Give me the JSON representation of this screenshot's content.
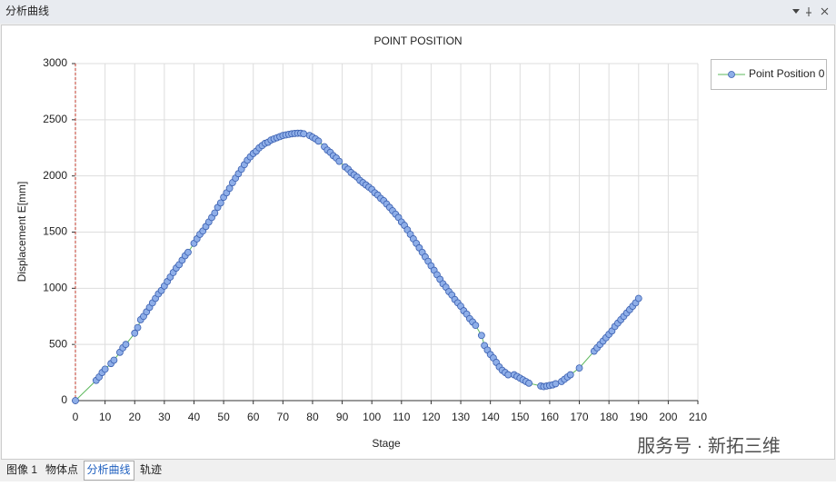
{
  "window": {
    "title": "分析曲线",
    "tabs": [
      "图像 1",
      "物体点",
      "分析曲线",
      "轨迹"
    ],
    "active_tab": 2,
    "watermark": "服务号 · 新拓三维"
  },
  "chart_data": {
    "type": "line",
    "title": "POINT POSITION",
    "x_label": "Stage",
    "y_label": "Displacement E[mm]",
    "x": [
      0,
      7,
      8,
      9,
      10,
      12,
      13,
      15,
      16,
      17,
      20,
      21,
      22,
      23,
      24,
      25,
      26,
      27,
      28,
      29,
      30,
      31,
      32,
      33,
      34,
      35,
      36,
      37,
      38,
      40,
      41,
      42,
      43,
      44,
      45,
      46,
      47,
      48,
      49,
      50,
      51,
      52,
      53,
      54,
      55,
      56,
      57,
      58,
      59,
      60,
      61,
      62,
      63,
      64,
      65,
      66,
      67,
      68,
      69,
      70,
      71,
      72,
      73,
      74,
      75,
      76,
      77,
      79,
      80,
      81,
      82,
      84,
      85,
      86,
      87,
      88,
      89,
      91,
      92,
      93,
      94,
      95,
      96,
      97,
      98,
      99,
      100,
      101,
      102,
      103,
      104,
      105,
      106,
      107,
      108,
      109,
      110,
      111,
      112,
      113,
      114,
      115,
      116,
      117,
      118,
      119,
      120,
      121,
      122,
      123,
      124,
      125,
      126,
      127,
      128,
      129,
      130,
      131,
      132,
      133,
      134,
      135,
      137,
      138,
      139,
      140,
      141,
      142,
      143,
      144,
      145,
      146,
      148,
      149,
      150,
      151,
      152,
      153,
      157,
      158,
      159,
      160,
      161,
      162,
      164,
      165,
      166,
      167,
      170,
      175,
      176,
      177,
      178,
      179,
      180,
      181,
      182,
      183,
      184,
      185,
      186,
      187,
      188,
      189,
      190
    ],
    "series": [
      {
        "name": "Point Position 0",
        "color": "#5cb85c",
        "marker_color": "#8eaee8",
        "marker_edge": "#3a5fb0",
        "values": [
          0,
          180,
          210,
          250,
          280,
          330,
          360,
          430,
          470,
          500,
          600,
          650,
          720,
          750,
          790,
          830,
          870,
          910,
          950,
          980,
          1020,
          1060,
          1100,
          1140,
          1180,
          1210,
          1250,
          1290,
          1320,
          1400,
          1440,
          1480,
          1510,
          1550,
          1590,
          1630,
          1670,
          1720,
          1760,
          1810,
          1850,
          1890,
          1940,
          1980,
          2020,
          2060,
          2100,
          2140,
          2170,
          2200,
          2220,
          2250,
          2270,
          2290,
          2300,
          2320,
          2330,
          2340,
          2350,
          2360,
          2365,
          2370,
          2375,
          2378,
          2380,
          2380,
          2375,
          2360,
          2345,
          2330,
          2310,
          2260,
          2230,
          2210,
          2180,
          2160,
          2130,
          2080,
          2060,
          2030,
          2010,
          1990,
          1960,
          1940,
          1920,
          1900,
          1880,
          1850,
          1830,
          1800,
          1780,
          1750,
          1720,
          1690,
          1660,
          1630,
          1590,
          1560,
          1520,
          1480,
          1440,
          1400,
          1360,
          1320,
          1280,
          1240,
          1200,
          1160,
          1120,
          1080,
          1040,
          1010,
          970,
          940,
          900,
          870,
          840,
          800,
          770,
          730,
          700,
          670,
          580,
          490,
          450,
          410,
          380,
          340,
          300,
          270,
          250,
          230,
          230,
          215,
          200,
          185,
          170,
          155,
          130,
          125,
          130,
          135,
          140,
          150,
          170,
          190,
          210,
          230,
          290,
          440,
          470,
          500,
          530,
          560,
          590,
          620,
          660,
          690,
          720,
          750,
          780,
          810,
          840,
          870,
          910
        ]
      }
    ],
    "xlim": [
      0,
      210
    ],
    "xticks": [
      0,
      10,
      20,
      30,
      40,
      50,
      60,
      70,
      80,
      90,
      100,
      110,
      120,
      130,
      140,
      150,
      160,
      170,
      180,
      190,
      200,
      210
    ],
    "ylim": [
      0,
      3000
    ],
    "yticks": [
      0,
      500,
      1000,
      1500,
      2000,
      2500,
      3000
    ],
    "grid": true,
    "legend": "right"
  }
}
